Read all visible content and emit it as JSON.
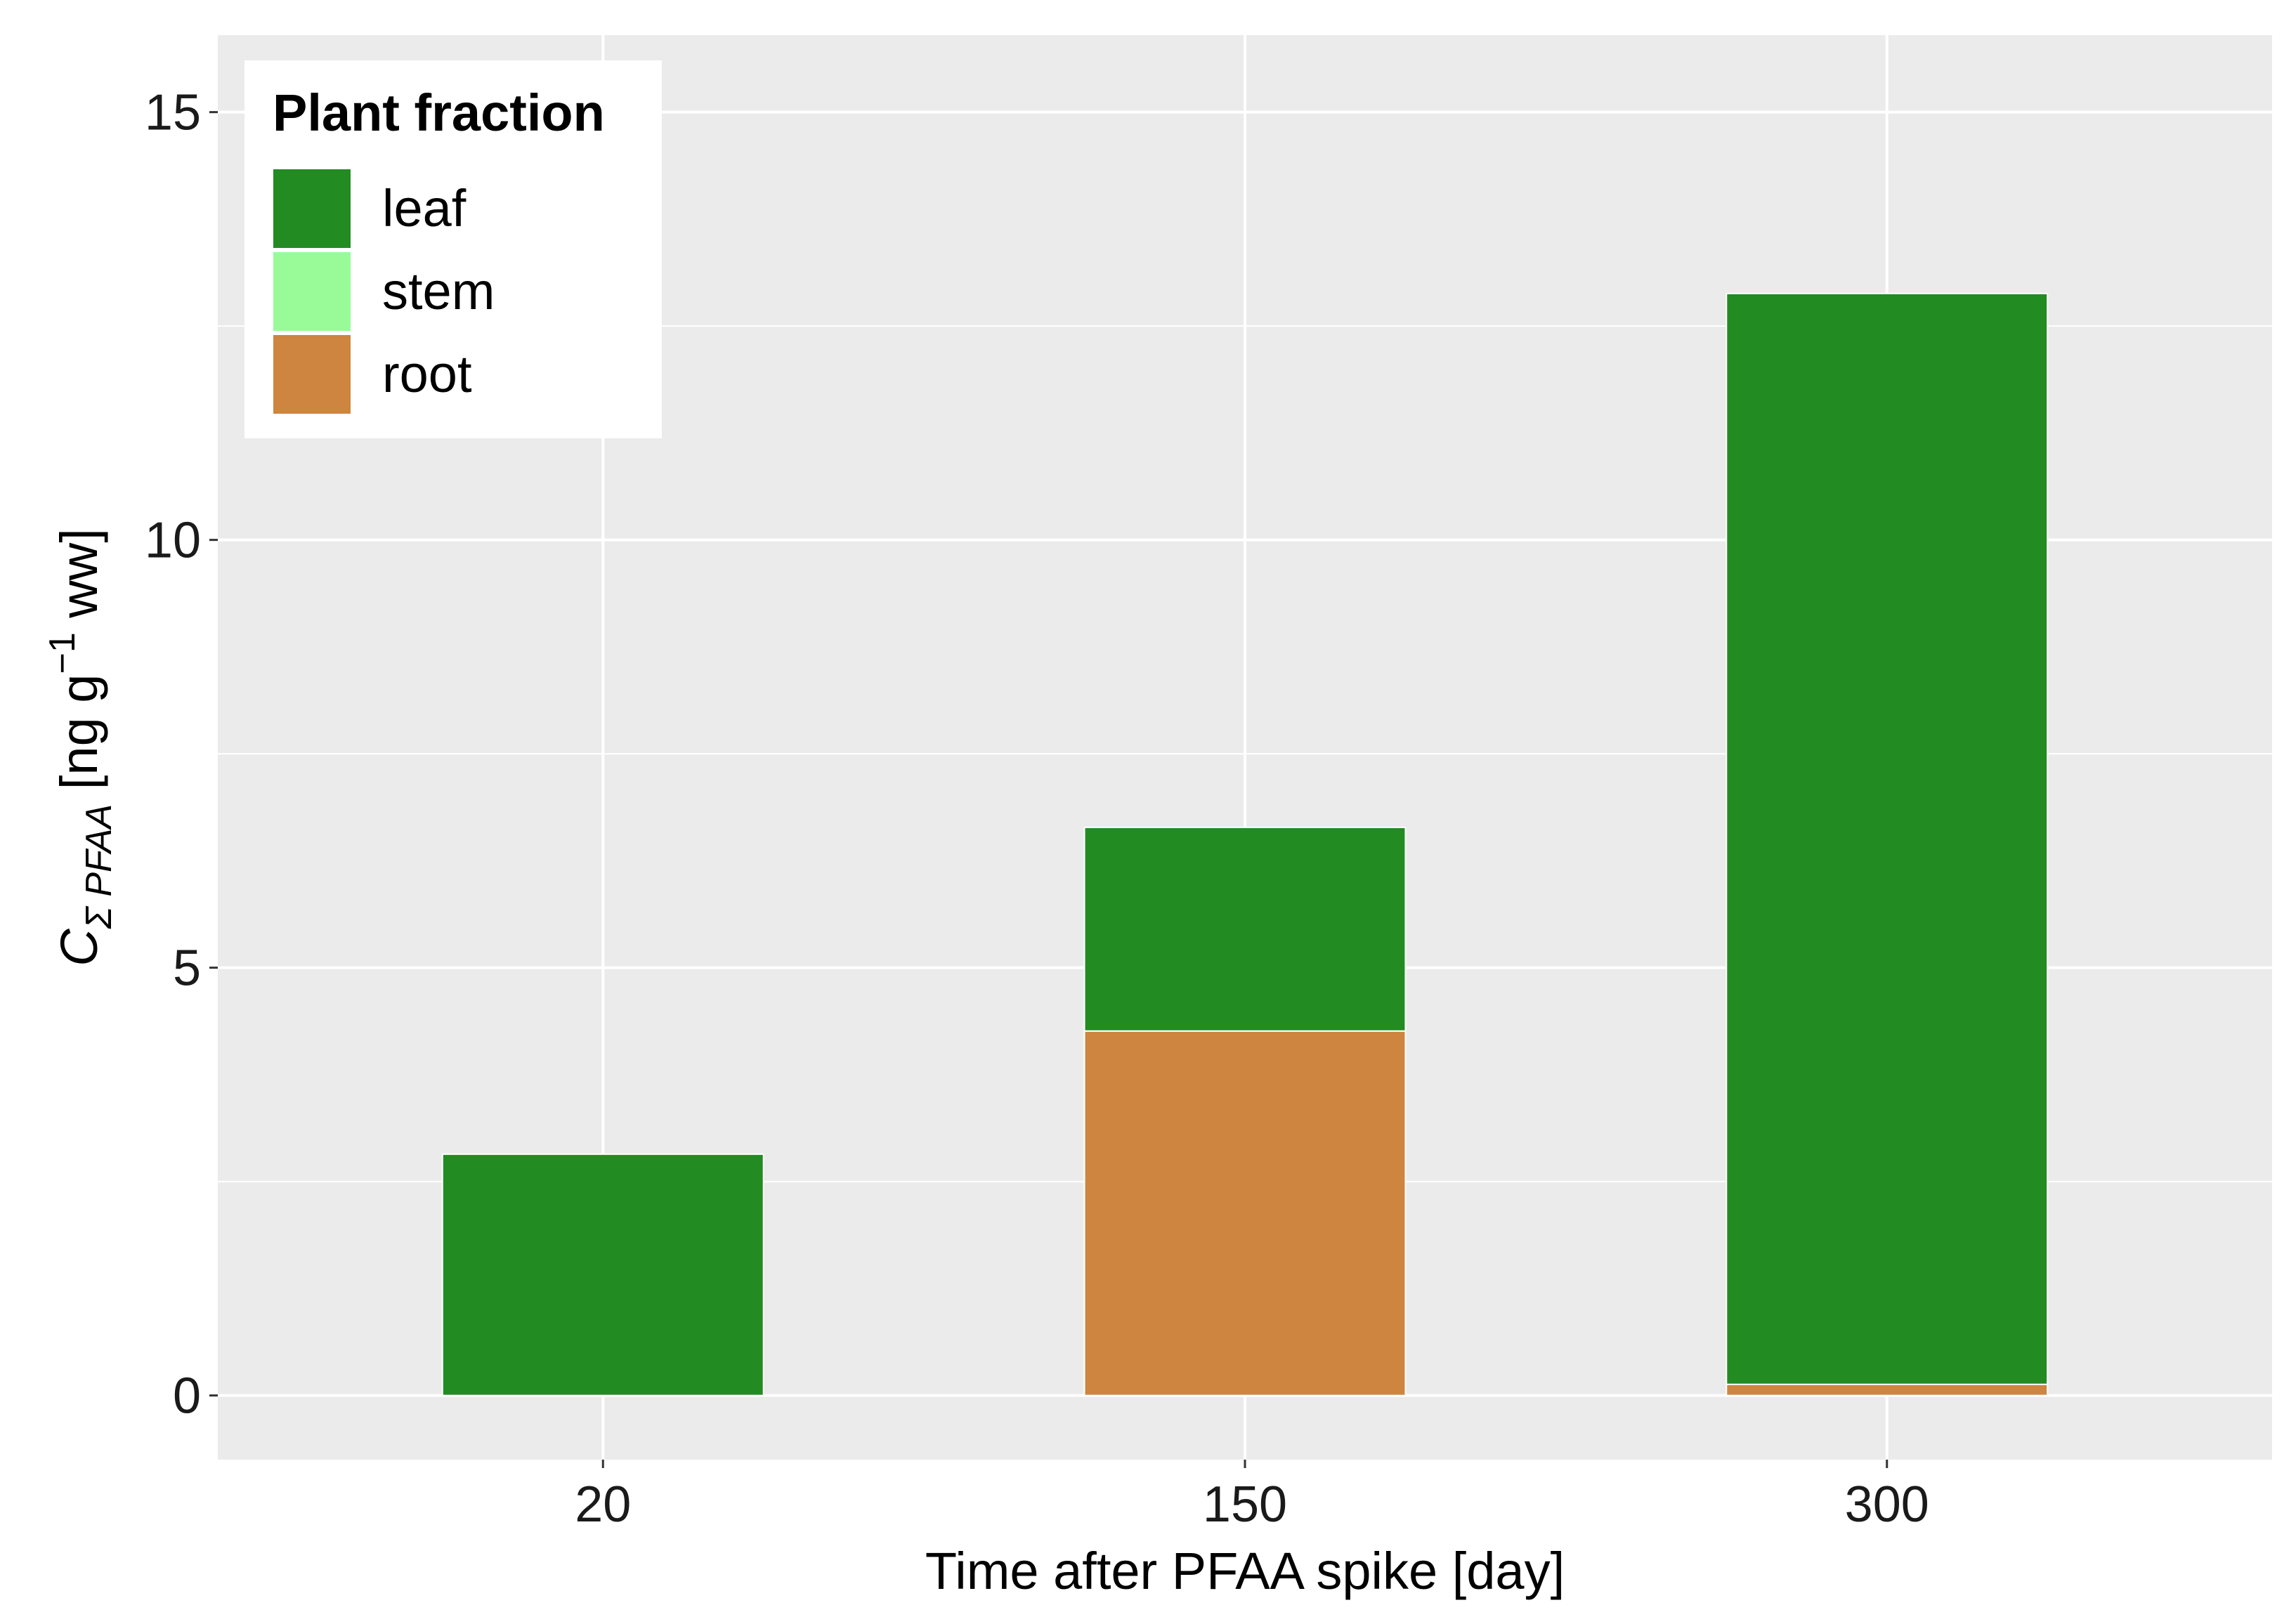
{
  "chart_data": {
    "type": "bar",
    "stacked": true,
    "categories": [
      "20",
      "150",
      "300"
    ],
    "series": [
      {
        "name": "leaf",
        "color": "#228B22",
        "values": [
          2.82,
          2.38,
          12.75
        ]
      },
      {
        "name": "stem",
        "color": "#98FB98",
        "values": [
          0,
          0,
          0
        ]
      },
      {
        "name": "root",
        "color": "#CD853F",
        "values": [
          0,
          4.26,
          0.13
        ]
      }
    ],
    "stack_order_bottom_to_top": [
      "root",
      "stem",
      "leaf"
    ],
    "xlabel": "Time after PFAA spike [day]",
    "ylabel": {
      "c": "C",
      "sub": "Σ PFAA",
      "unit_open": " [ng  g",
      "sup": "−1",
      "unit_close": "  ww]"
    },
    "ylim": [
      -0.75,
      15.9
    ],
    "yticks": [
      0,
      5,
      10,
      15
    ],
    "grid": true,
    "background": "#EBEBEB",
    "legend": {
      "title": "Plant fraction",
      "position": "top-left (inside)"
    }
  }
}
